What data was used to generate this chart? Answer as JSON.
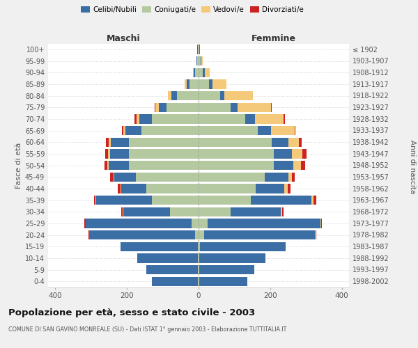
{
  "age_groups": [
    "0-4",
    "5-9",
    "10-14",
    "15-19",
    "20-24",
    "25-29",
    "30-34",
    "35-39",
    "40-44",
    "45-49",
    "50-54",
    "55-59",
    "60-64",
    "65-69",
    "70-74",
    "75-79",
    "80-84",
    "85-89",
    "90-94",
    "95-99",
    "100+"
  ],
  "birth_years": [
    "1998-2002",
    "1993-1997",
    "1988-1992",
    "1983-1987",
    "1978-1982",
    "1973-1977",
    "1968-1972",
    "1963-1967",
    "1958-1962",
    "1953-1957",
    "1948-1952",
    "1943-1947",
    "1938-1942",
    "1933-1937",
    "1928-1932",
    "1923-1927",
    "1918-1922",
    "1913-1917",
    "1908-1912",
    "1903-1907",
    "≤ 1902"
  ],
  "maschi": {
    "coniugati": [
      1,
      1,
      2,
      2,
      10,
      20,
      80,
      130,
      145,
      175,
      195,
      195,
      195,
      160,
      130,
      90,
      60,
      25,
      10,
      4,
      2
    ],
    "celibi": [
      130,
      145,
      170,
      215,
      295,
      295,
      130,
      155,
      70,
      60,
      55,
      52,
      50,
      45,
      35,
      20,
      15,
      8,
      4,
      2,
      2
    ],
    "vedovi": [
      0,
      0,
      0,
      0,
      0,
      0,
      1,
      2,
      3,
      3,
      5,
      5,
      5,
      5,
      8,
      10,
      10,
      5,
      2,
      0,
      0
    ],
    "divorziati": [
      0,
      0,
      0,
      0,
      2,
      3,
      5,
      5,
      8,
      8,
      8,
      8,
      8,
      3,
      5,
      2,
      0,
      0,
      0,
      0,
      0
    ]
  },
  "femmine": {
    "coniugate": [
      1,
      1,
      2,
      3,
      15,
      25,
      90,
      145,
      160,
      185,
      210,
      210,
      205,
      165,
      130,
      90,
      60,
      30,
      12,
      5,
      2
    ],
    "nubili": [
      135,
      155,
      185,
      240,
      310,
      315,
      140,
      170,
      80,
      65,
      55,
      50,
      45,
      38,
      28,
      18,
      12,
      8,
      5,
      3,
      2
    ],
    "vedove": [
      0,
      0,
      0,
      0,
      1,
      2,
      3,
      5,
      8,
      10,
      20,
      30,
      30,
      65,
      80,
      95,
      80,
      40,
      15,
      3,
      0
    ],
    "divorziate": [
      0,
      0,
      0,
      0,
      2,
      3,
      5,
      8,
      8,
      8,
      12,
      12,
      8,
      3,
      3,
      2,
      0,
      0,
      0,
      0,
      0
    ]
  },
  "colors": {
    "celibi": "#3a6ea5",
    "coniugati": "#b5c9a0",
    "vedovi": "#f5c97a",
    "divorziati": "#cc2222"
  },
  "xlim": 420,
  "title": "Popolazione per età, sesso e stato civile - 2003",
  "subtitle": "COMUNE DI SAN GAVINO MONREALE (SU) - Dati ISTAT 1° gennaio 2003 - Elaborazione TUTTITALIA.IT",
  "ylabel": "Fasce di età",
  "ylabel_right": "Anni di nascita",
  "legend_labels": [
    "Celibi/Nubili",
    "Coniugati/e",
    "Vedovi/e",
    "Divorziati/e"
  ],
  "bg_color": "#f0f0f0",
  "plot_bg": "#ffffff"
}
